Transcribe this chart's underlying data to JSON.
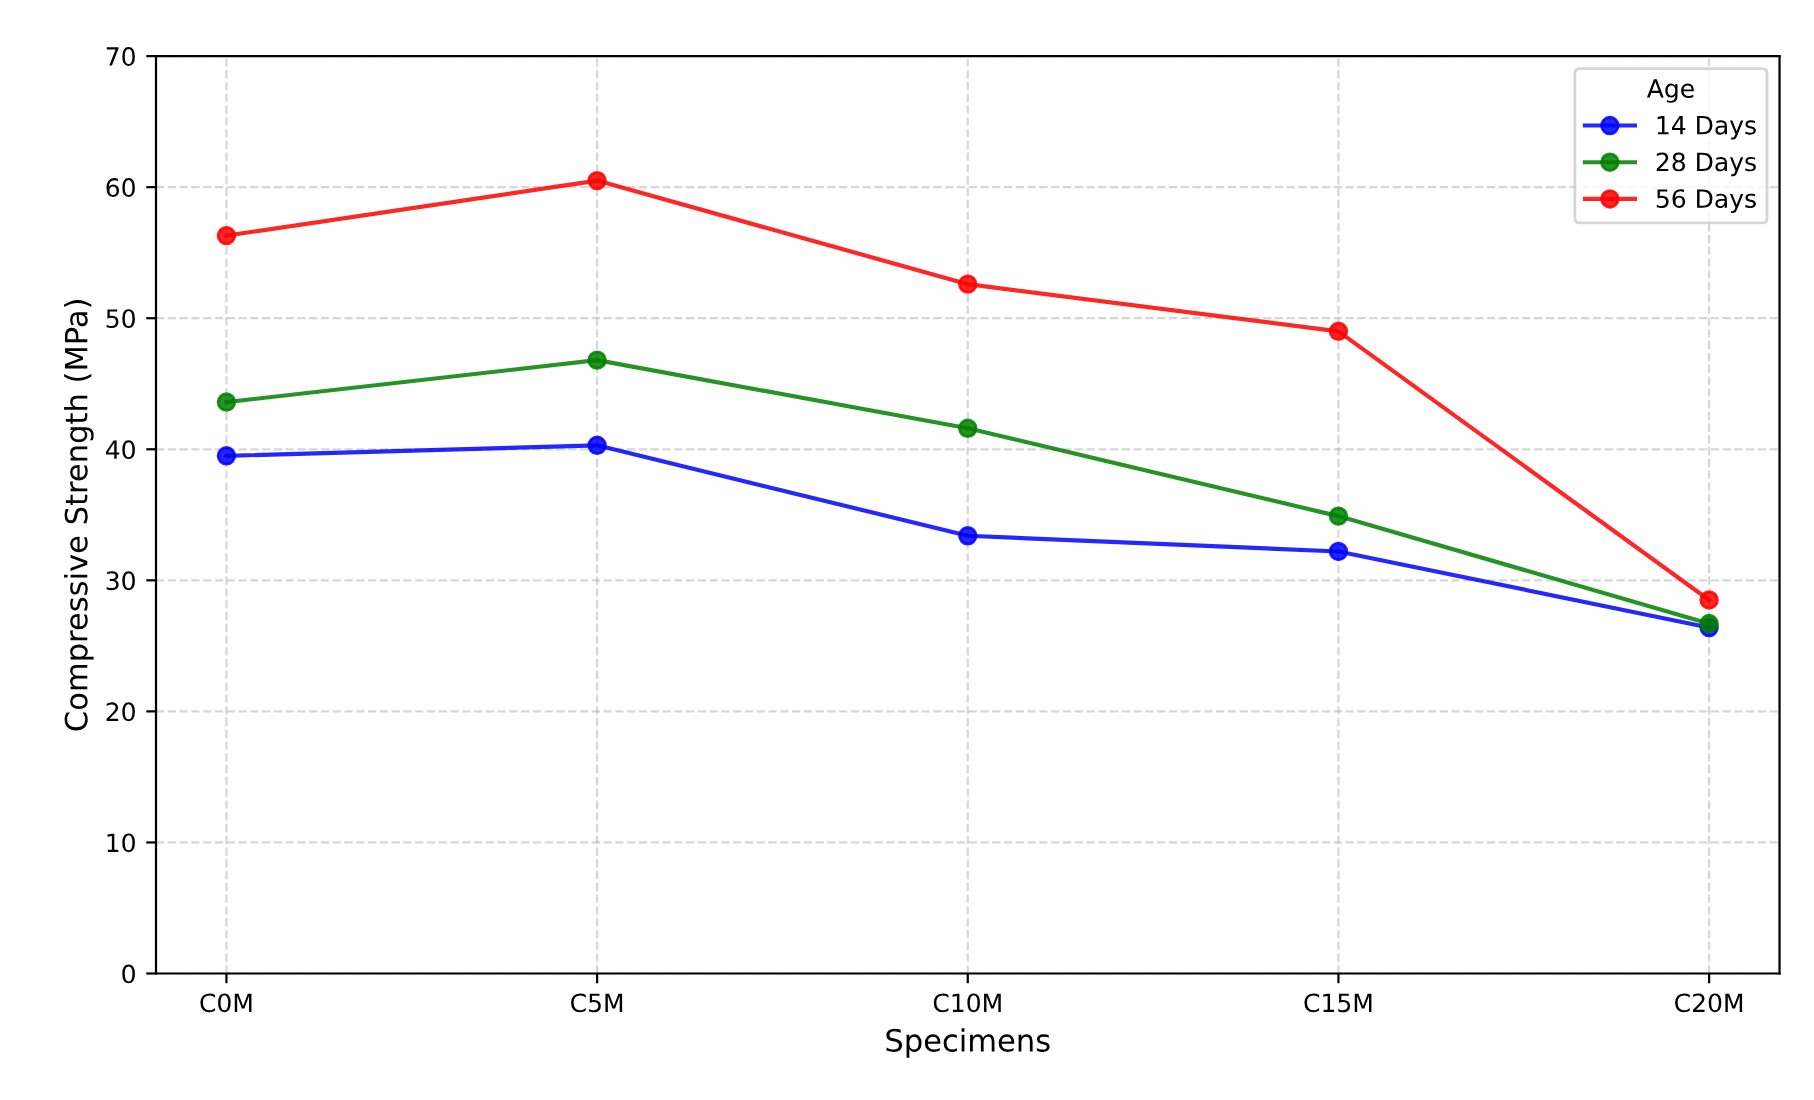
{
  "chart_data": {
    "type": "line",
    "xlabel": "Specimens",
    "ylabel": "Compressive Strength (MPa)",
    "categories": [
      "C0M",
      "C5M",
      "C10M",
      "C15M",
      "C20M"
    ],
    "series": [
      {
        "name": "14 Days",
        "color": "#0000ff",
        "values": [
          39.5,
          40.3,
          33.4,
          32.2,
          26.4
        ]
      },
      {
        "name": "28 Days",
        "color": "#008000",
        "values": [
          43.6,
          46.8,
          41.6,
          34.9,
          26.7
        ]
      },
      {
        "name": "56 Days",
        "color": "#ff0000",
        "values": [
          56.3,
          60.5,
          52.6,
          49.0,
          28.5
        ]
      }
    ],
    "ylim": [
      0,
      70
    ],
    "yticks": [
      0,
      10,
      20,
      30,
      40,
      50,
      60,
      70
    ],
    "grid": true,
    "legend": "top right",
    "legend_title": "Age",
    "marker": "circle",
    "line_style": "solid"
  }
}
